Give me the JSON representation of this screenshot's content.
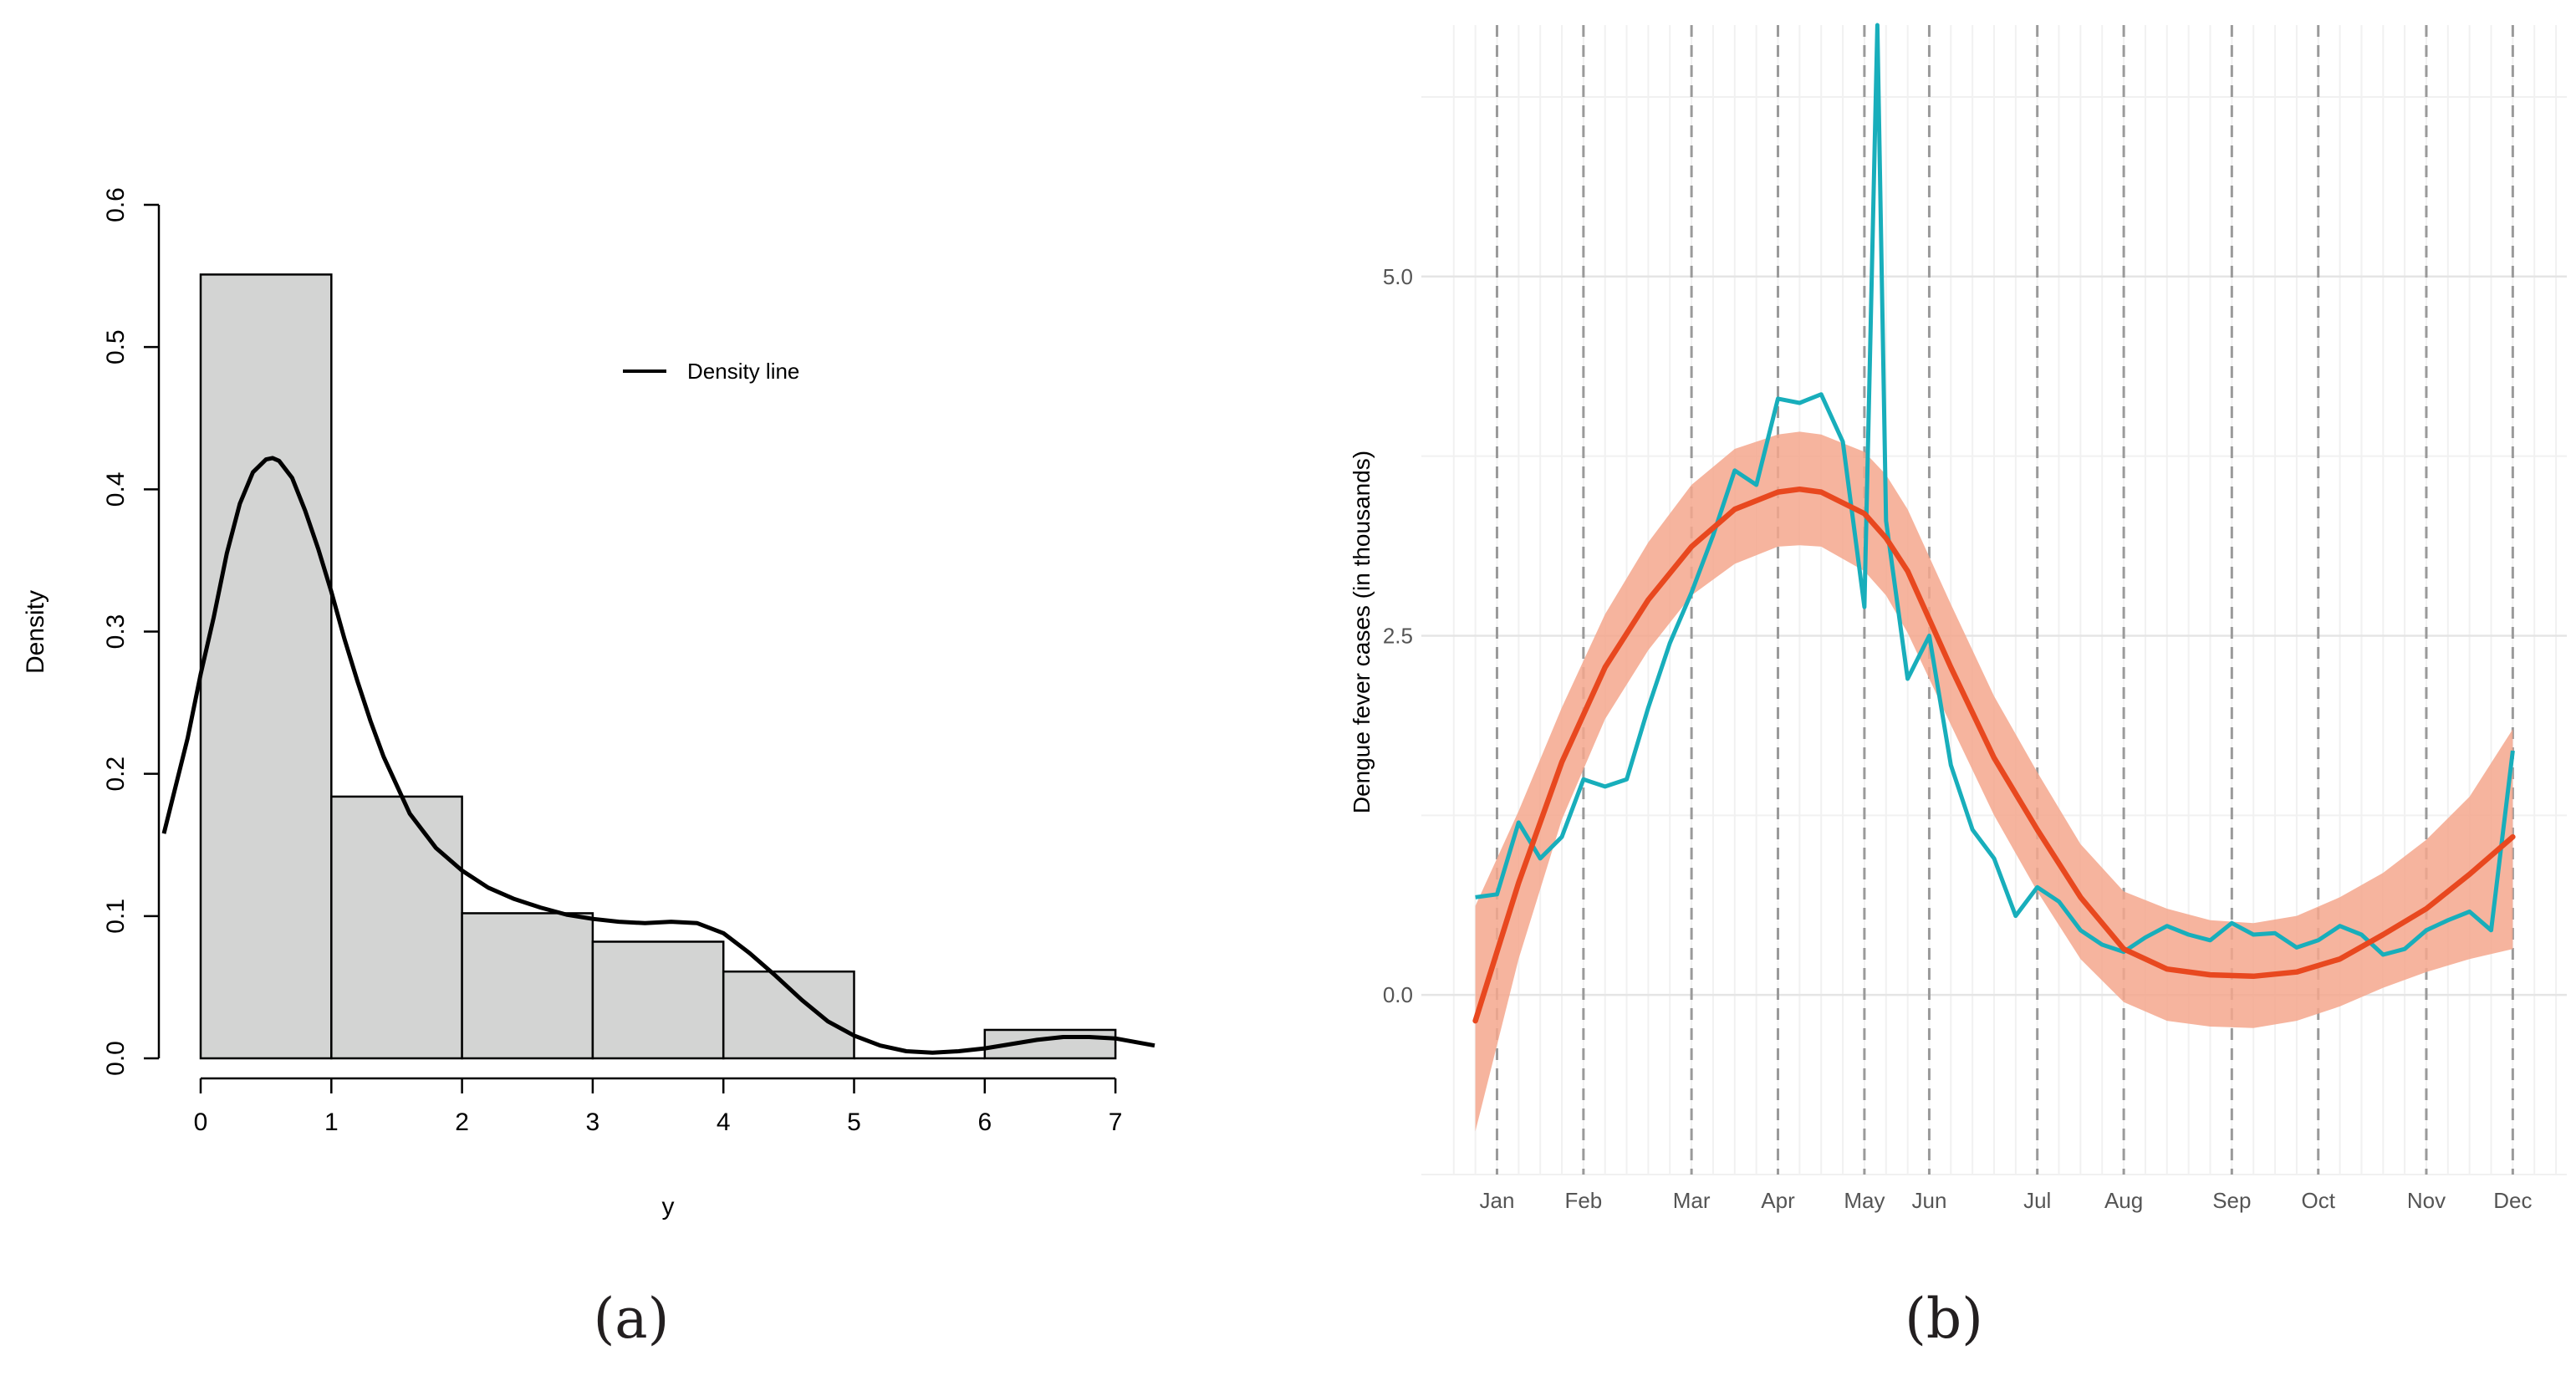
{
  "figure": {
    "panel_a_caption": "(a)",
    "panel_b_caption": "(b)"
  },
  "colors": {
    "bar_fill": "#d3d4d3",
    "bar_stroke": "#000000",
    "density_line": "#000000",
    "observed_line": "#18aebb",
    "observed_overlap": "#7f9a85",
    "fitted_line": "#e8481f",
    "band_fill": "#f4a78d",
    "grid_major": "#e5e5e5",
    "grid_minor": "#f1f1f1",
    "month_rule": "#9a9a9a"
  },
  "chart_data": [
    {
      "type": "bar",
      "panel": "a",
      "title": "",
      "xlabel": "y",
      "ylabel": "Density",
      "xlim": [
        0,
        7.3
      ],
      "ylim": [
        0,
        0.6
      ],
      "x_ticks": [
        0,
        1,
        2,
        3,
        4,
        5,
        6,
        7
      ],
      "x_tick_labels": [
        "0",
        "1",
        "2",
        "3",
        "4",
        "5",
        "6",
        "7"
      ],
      "y_ticks": [
        0.0,
        0.1,
        0.2,
        0.3,
        0.4,
        0.5,
        0.6
      ],
      "y_tick_labels": [
        "0.0",
        "0.1",
        "0.2",
        "0.3",
        "0.4",
        "0.5",
        "0.6"
      ],
      "bins": [
        {
          "from": 0,
          "to": 1,
          "value": 0.551
        },
        {
          "from": 1,
          "to": 2,
          "value": 0.184
        },
        {
          "from": 2,
          "to": 3,
          "value": 0.102
        },
        {
          "from": 3,
          "to": 4,
          "value": 0.082
        },
        {
          "from": 4,
          "to": 5,
          "value": 0.061
        },
        {
          "from": 5,
          "to": 6,
          "value": 0.0
        },
        {
          "from": 6,
          "to": 7,
          "value": 0.02
        }
      ],
      "legend": {
        "position": "top-right",
        "entries": [
          "Density line"
        ]
      },
      "density_line": {
        "x": [
          -0.3,
          -0.1,
          0.0,
          0.1,
          0.2,
          0.3,
          0.4,
          0.5,
          0.55,
          0.6,
          0.7,
          0.8,
          0.9,
          1.0,
          1.1,
          1.2,
          1.3,
          1.4,
          1.6,
          1.8,
          2.0,
          2.2,
          2.4,
          2.6,
          2.8,
          3.0,
          3.2,
          3.4,
          3.6,
          3.8,
          4.0,
          4.2,
          4.4,
          4.6,
          4.8,
          5.0,
          5.2,
          5.4,
          5.6,
          5.8,
          6.0,
          6.2,
          6.4,
          6.6,
          6.8,
          7.0,
          7.3
        ],
        "y": [
          0.158,
          0.225,
          0.27,
          0.31,
          0.355,
          0.39,
          0.412,
          0.421,
          0.422,
          0.42,
          0.408,
          0.385,
          0.358,
          0.328,
          0.295,
          0.265,
          0.237,
          0.212,
          0.172,
          0.148,
          0.132,
          0.12,
          0.112,
          0.106,
          0.101,
          0.098,
          0.096,
          0.095,
          0.096,
          0.095,
          0.088,
          0.074,
          0.058,
          0.041,
          0.026,
          0.016,
          0.009,
          0.005,
          0.004,
          0.005,
          0.007,
          0.01,
          0.013,
          0.015,
          0.015,
          0.014,
          0.009
        ]
      }
    },
    {
      "type": "line",
      "panel": "b",
      "title": "",
      "xlabel": "",
      "ylabel": "Dengue fever cases (in thousands)",
      "xlim": [
        -2.5,
        50.5
      ],
      "ylim": [
        -1.25,
        6.75
      ],
      "y_ticks": [
        0.0,
        2.5,
        5.0
      ],
      "y_tick_labels": [
        "0.0",
        "2.5",
        "5.0"
      ],
      "y_minor_gridlines": [
        -1.25,
        1.25,
        3.75,
        6.25
      ],
      "months": [
        {
          "label": "Jan",
          "x": 1
        },
        {
          "label": "Feb",
          "x": 5
        },
        {
          "label": "Mar",
          "x": 10
        },
        {
          "label": "Apr",
          "x": 14
        },
        {
          "label": "May",
          "x": 18
        },
        {
          "label": "Jun",
          "x": 21
        },
        {
          "label": "Jul",
          "x": 26
        },
        {
          "label": "Aug",
          "x": 30
        },
        {
          "label": "Sep",
          "x": 35
        },
        {
          "label": "Oct",
          "x": 39
        },
        {
          "label": "Nov",
          "x": 44
        },
        {
          "label": "Dec",
          "x": 48
        }
      ],
      "series": [
        {
          "name": "observed",
          "x": [
            0,
            1,
            2,
            3,
            4,
            5,
            6,
            7,
            8,
            9,
            10,
            11,
            12,
            13,
            14,
            15,
            16,
            17,
            18,
            18.6,
            19,
            20,
            21,
            22,
            23,
            24,
            25,
            26,
            27,
            28,
            29,
            30,
            31,
            32,
            33,
            34,
            35,
            36,
            37,
            38,
            39,
            40,
            41,
            42,
            43,
            44,
            45,
            46,
            47,
            48
          ],
          "y": [
            0.68,
            0.7,
            1.2,
            0.95,
            1.1,
            1.5,
            1.45,
            1.5,
            2.0,
            2.45,
            2.8,
            3.2,
            3.65,
            3.55,
            4.15,
            4.12,
            4.18,
            3.85,
            2.7,
            6.75,
            3.3,
            2.2,
            2.5,
            1.6,
            1.15,
            0.95,
            0.55,
            0.75,
            0.65,
            0.45,
            0.35,
            0.3,
            0.4,
            0.48,
            0.42,
            0.38,
            0.5,
            0.42,
            0.43,
            0.33,
            0.38,
            0.48,
            0.42,
            0.28,
            0.32,
            0.45,
            0.52,
            0.58,
            0.45,
            1.7
          ]
        },
        {
          "name": "fitted",
          "x": [
            0,
            2,
            4,
            6,
            8,
            10,
            12,
            14,
            15,
            16,
            18,
            19,
            20,
            22,
            24,
            26,
            28,
            30,
            32,
            34,
            36,
            38,
            40,
            42,
            44,
            46,
            48
          ],
          "y": [
            -0.18,
            0.78,
            1.62,
            2.28,
            2.75,
            3.12,
            3.38,
            3.5,
            3.52,
            3.5,
            3.35,
            3.18,
            2.95,
            2.28,
            1.65,
            1.15,
            0.68,
            0.32,
            0.18,
            0.14,
            0.13,
            0.16,
            0.25,
            0.42,
            0.6,
            0.84,
            1.1
          ]
        },
        {
          "name": "band_upper",
          "x": [
            0,
            2,
            4,
            6,
            8,
            10,
            12,
            14,
            15,
            16,
            18,
            19,
            20,
            22,
            24,
            26,
            28,
            30,
            32,
            34,
            36,
            38,
            40,
            42,
            44,
            46,
            48
          ],
          "y": [
            0.62,
            1.28,
            2.0,
            2.65,
            3.15,
            3.55,
            3.8,
            3.9,
            3.92,
            3.9,
            3.78,
            3.62,
            3.38,
            2.72,
            2.08,
            1.55,
            1.05,
            0.72,
            0.6,
            0.52,
            0.5,
            0.55,
            0.68,
            0.85,
            1.08,
            1.38,
            1.85
          ]
        },
        {
          "name": "band_lower",
          "x": [
            0,
            2,
            4,
            6,
            8,
            10,
            12,
            14,
            15,
            16,
            18,
            19,
            20,
            22,
            24,
            26,
            28,
            30,
            32,
            34,
            36,
            38,
            40,
            42,
            44,
            46,
            48
          ],
          "y": [
            -0.95,
            0.25,
            1.22,
            1.92,
            2.4,
            2.78,
            3.0,
            3.12,
            3.13,
            3.12,
            2.95,
            2.78,
            2.52,
            1.88,
            1.25,
            0.72,
            0.25,
            -0.05,
            -0.18,
            -0.22,
            -0.23,
            -0.18,
            -0.08,
            0.05,
            0.16,
            0.25,
            0.32
          ]
        }
      ]
    }
  ]
}
